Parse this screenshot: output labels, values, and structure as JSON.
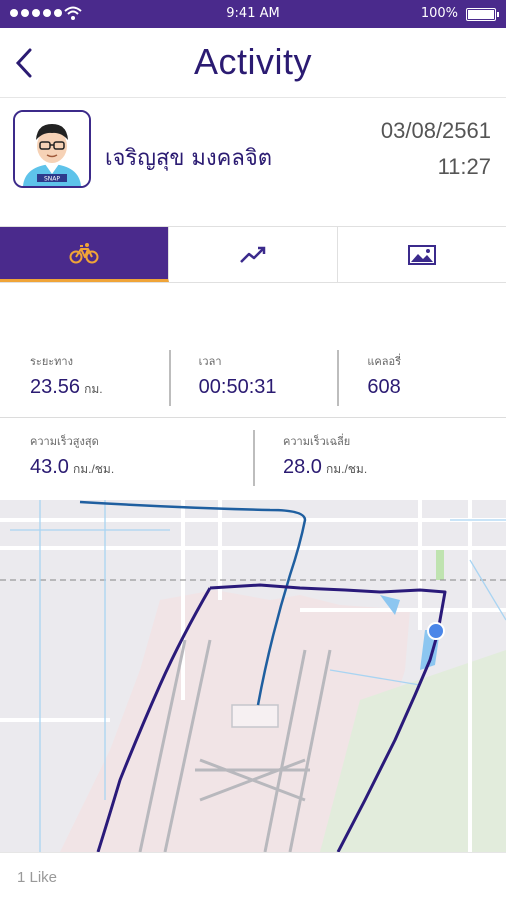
{
  "status_bar": {
    "time": "9:41 AM",
    "battery": "100%"
  },
  "nav": {
    "title": "Activity",
    "back_icon": "chevron-left-icon"
  },
  "profile": {
    "name": "เจริญสุข มงคลจิต",
    "date": "03/08/2561",
    "time": "11:27",
    "avatar_badge": "SNAP"
  },
  "tabs": [
    {
      "icon": "bicycle-icon",
      "active": true
    },
    {
      "icon": "trend-chart-icon",
      "active": false
    },
    {
      "icon": "image-icon",
      "active": false
    }
  ],
  "stats": {
    "distance": {
      "label": "ระยะทาง",
      "value": "23.56",
      "unit": "กม."
    },
    "duration": {
      "label": "เวลา",
      "value": "00:50:31"
    },
    "calories": {
      "label": "แคลอรี่",
      "value": "608"
    },
    "max_speed": {
      "label": "ความเร็วสูงสุด",
      "value": "43.0",
      "unit": "กม./ชม."
    },
    "avg_speed": {
      "label": "ความเร็วเฉลี่ย",
      "value": "28.0",
      "unit": "กม./ชม."
    }
  },
  "footer": {
    "likes": "1 Like"
  },
  "colors": {
    "brand_purple": "#4a2a8c",
    "accent_orange": "#f0a437",
    "route_dark": "#2a1a7a",
    "route_blue": "#1f5fa0"
  }
}
